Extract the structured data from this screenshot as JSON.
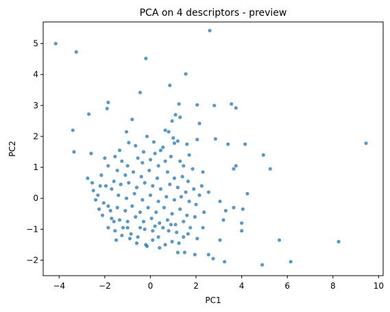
{
  "chart_data": {
    "type": "scatter",
    "title": "PCA on 4 descriptors - preview",
    "xlabel": "PC1",
    "ylabel": "PC2",
    "xlim": [
      -4.7,
      10.2
    ],
    "ylim": [
      -2.5,
      5.7
    ],
    "xticks": [
      -4,
      -2,
      0,
      2,
      4,
      6,
      8,
      10
    ],
    "yticks": [
      -2,
      -1,
      0,
      1,
      2,
      3,
      4,
      5
    ],
    "grid": false,
    "series": [
      {
        "color": "#1f77b4",
        "opacity": 0.75,
        "marker": "circle",
        "points": [
          [
            -4.15,
            5.0
          ],
          [
            -3.25,
            4.73
          ],
          [
            -0.2,
            4.52
          ],
          [
            2.6,
            5.42
          ],
          [
            1.55,
            4.02
          ],
          [
            0.85,
            3.65
          ],
          [
            -0.45,
            3.42
          ],
          [
            -1.85,
            3.1
          ],
          [
            -2.7,
            2.72
          ],
          [
            -1.9,
            2.9
          ],
          [
            1.25,
            3.05
          ],
          [
            2.05,
            3.02
          ],
          [
            2.8,
            3.0
          ],
          [
            3.55,
            3.05
          ],
          [
            3.75,
            2.92
          ],
          [
            1.1,
            2.7
          ],
          [
            1.3,
            2.62
          ],
          [
            0.95,
            2.5
          ],
          [
            -0.8,
            2.55
          ],
          [
            2.15,
            2.42
          ],
          [
            0.65,
            2.2
          ],
          [
            -1.05,
            2.15
          ],
          [
            -3.4,
            2.2
          ],
          [
            2.05,
            1.9
          ],
          [
            0.15,
            1.82
          ],
          [
            1.2,
            1.85
          ],
          [
            0.8,
            2.15
          ],
          [
            2.85,
            1.92
          ],
          [
            3.4,
            1.75
          ],
          [
            4.15,
            1.75
          ],
          [
            9.45,
            1.78
          ],
          [
            4.95,
            1.4
          ],
          [
            5.25,
            0.95
          ],
          [
            3.65,
            0.95
          ],
          [
            3.75,
            1.05
          ],
          [
            -3.35,
            1.5
          ],
          [
            1.05,
            1.78
          ],
          [
            0.55,
            1.65
          ],
          [
            -0.65,
            1.7
          ],
          [
            -0.95,
            1.8
          ],
          [
            1.6,
            1.75
          ],
          [
            2.3,
            0.85
          ],
          [
            1.45,
            1.05
          ],
          [
            2.25,
            0.4
          ],
          [
            2.55,
            0.2
          ],
          [
            2.15,
            0.1
          ],
          [
            3.05,
            -0.1
          ],
          [
            3.3,
            -0.4
          ],
          [
            4.25,
            0.15
          ],
          [
            4.05,
            -0.35
          ],
          [
            3.65,
            -0.3
          ],
          [
            4.0,
            -0.8
          ],
          [
            3.2,
            -0.7
          ],
          [
            3.05,
            -1.35
          ],
          [
            4.0,
            -1.05
          ],
          [
            5.65,
            -1.35
          ],
          [
            8.25,
            -1.4
          ],
          [
            6.15,
            -2.05
          ],
          [
            4.9,
            -2.15
          ],
          [
            3.25,
            -2.05
          ],
          [
            2.75,
            -1.95
          ],
          [
            2.55,
            -1.82
          ],
          [
            1.95,
            -1.82
          ],
          [
            1.5,
            -1.75
          ],
          [
            1.2,
            -1.75
          ],
          [
            0.4,
            -1.6
          ],
          [
            -0.2,
            -1.5
          ],
          [
            -1.5,
            -1.35
          ],
          [
            -0.9,
            -1.3
          ],
          [
            0.1,
            -1.35
          ],
          [
            0.95,
            -1.4
          ],
          [
            2.05,
            -1.3
          ],
          [
            -2.75,
            0.65
          ],
          [
            -2.55,
            0.5
          ],
          [
            -2.2,
            0.4
          ],
          [
            -2.3,
            0.1
          ],
          [
            -1.95,
            0.4
          ],
          [
            -1.7,
            0.3
          ],
          [
            -2.05,
            -0.15
          ],
          [
            -2.1,
            -0.55
          ],
          [
            -1.75,
            -0.4
          ],
          [
            -1.6,
            -0.75
          ],
          [
            -1.85,
            -0.95
          ],
          [
            -1.55,
            -1.05
          ],
          [
            -1.25,
            -1.2
          ],
          [
            -1.0,
            -0.95
          ],
          [
            -0.85,
            -1.15
          ],
          [
            -0.55,
            -1.25
          ],
          [
            -0.25,
            -1.0
          ],
          [
            0.1,
            -1.05
          ],
          [
            0.35,
            -1.25
          ],
          [
            0.55,
            -0.95
          ],
          [
            0.8,
            -1.05
          ],
          [
            1.15,
            -1.1
          ],
          [
            1.45,
            -1.25
          ],
          [
            1.75,
            -0.95
          ],
          [
            -2.6,
            1.45
          ],
          [
            -2.0,
            1.3
          ],
          [
            -1.55,
            1.35
          ],
          [
            -1.25,
            1.2
          ],
          [
            -1.0,
            1.05
          ],
          [
            -0.55,
            1.3
          ],
          [
            -0.35,
            1.15
          ],
          [
            0.0,
            1.25
          ],
          [
            0.35,
            1.05
          ],
          [
            0.65,
            1.2
          ],
          [
            0.9,
            1.35
          ],
          [
            1.3,
            1.2
          ],
          [
            1.7,
            1.4
          ],
          [
            1.85,
            0.95
          ],
          [
            -1.85,
            1.05
          ],
          [
            -1.45,
            0.9
          ],
          [
            -1.1,
            0.75
          ],
          [
            -0.75,
            0.85
          ],
          [
            -0.4,
            0.7
          ],
          [
            -0.05,
            0.9
          ],
          [
            0.3,
            0.65
          ],
          [
            0.75,
            0.85
          ],
          [
            1.05,
            0.65
          ],
          [
            1.4,
            0.7
          ],
          [
            1.65,
            0.55
          ],
          [
            -1.6,
            0.55
          ],
          [
            -1.3,
            0.45
          ],
          [
            -0.95,
            0.5
          ],
          [
            -0.6,
            0.35
          ],
          [
            -0.25,
            0.5
          ],
          [
            0.1,
            0.4
          ],
          [
            0.45,
            0.3
          ],
          [
            0.85,
            0.45
          ],
          [
            1.2,
            0.35
          ],
          [
            1.55,
            0.2
          ],
          [
            1.9,
            0.3
          ],
          [
            -2.4,
            -0.05
          ],
          [
            -1.4,
            0.1
          ],
          [
            -1.05,
            0.0
          ],
          [
            -0.7,
            0.15
          ],
          [
            -0.35,
            -0.05
          ],
          [
            0.0,
            0.1
          ],
          [
            0.35,
            -0.1
          ],
          [
            0.7,
            0.05
          ],
          [
            1.05,
            -0.05
          ],
          [
            1.35,
            0.05
          ],
          [
            1.7,
            -0.1
          ],
          [
            2.0,
            -0.2
          ],
          [
            -2.25,
            -0.35
          ],
          [
            -1.85,
            -0.25
          ],
          [
            -1.45,
            -0.3
          ],
          [
            -1.1,
            -0.4
          ],
          [
            -0.8,
            -0.25
          ],
          [
            -0.45,
            -0.45
          ],
          [
            -0.1,
            -0.3
          ],
          [
            0.25,
            -0.45
          ],
          [
            0.6,
            -0.3
          ],
          [
            0.95,
            -0.5
          ],
          [
            1.3,
            -0.35
          ],
          [
            1.6,
            -0.55
          ],
          [
            1.95,
            -0.6
          ],
          [
            2.35,
            -0.45
          ],
          [
            -1.7,
            -0.65
          ],
          [
            -1.35,
            -0.7
          ],
          [
            -1.0,
            -0.75
          ],
          [
            -0.65,
            -0.6
          ],
          [
            -0.3,
            -0.75
          ],
          [
            0.05,
            -0.65
          ],
          [
            0.4,
            -0.8
          ],
          [
            0.75,
            -0.7
          ],
          [
            1.1,
            -0.85
          ],
          [
            1.45,
            -0.75
          ],
          [
            -1.2,
            -0.95
          ],
          [
            -0.45,
            -0.95
          ],
          [
            0.2,
            -0.9
          ],
          [
            0.9,
            -0.85
          ],
          [
            1.25,
            -1.45
          ],
          [
            1.65,
            -1.15
          ],
          [
            -0.6,
            -1.45
          ],
          [
            0.65,
            -1.5
          ],
          [
            -2.5,
            0.25
          ],
          [
            -2.15,
            0.75
          ],
          [
            -0.15,
            2.0
          ],
          [
            0.45,
            1.55
          ],
          [
            0.2,
            1.45
          ],
          [
            -0.3,
            1.5
          ],
          [
            -1.35,
            1.55
          ],
          [
            1.0,
            1.95
          ],
          [
            -0.15,
            -1.55
          ],
          [
            2.3,
            -0.95
          ]
        ]
      }
    ]
  }
}
